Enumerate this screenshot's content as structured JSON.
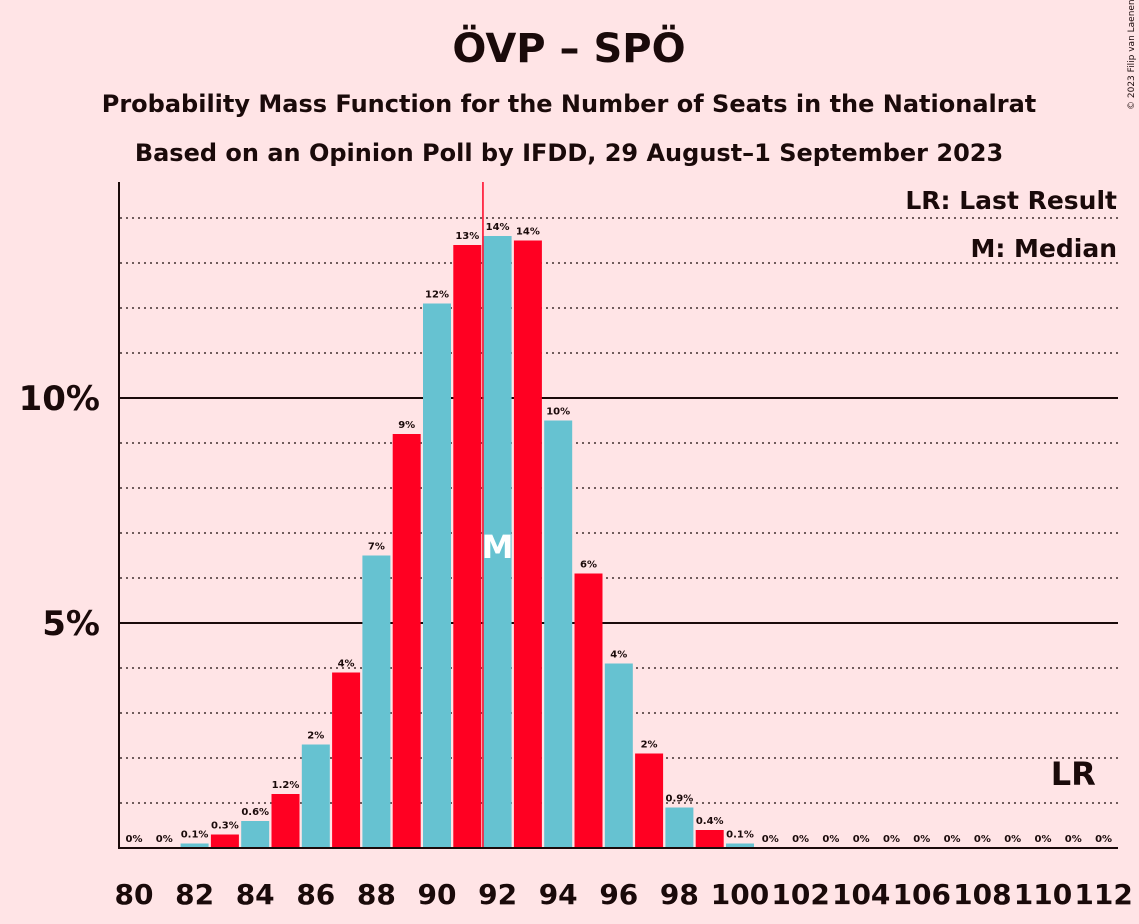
{
  "chart_data": {
    "type": "bar",
    "title": "ÖVP – SPÖ",
    "subtitle": "Probability Mass Function for the Number of Seats in the Nationalrat",
    "subtitle2": "Based on an Opinion Poll by IFDD, 29 August–1 September 2023",
    "copyright": "© 2023 Filip van Laenen",
    "legend": {
      "last_result": "LR: Last Result",
      "median": "M: Median"
    },
    "median_marker": "M",
    "median_seat": 92,
    "last_result_marker": "LR",
    "last_result_seat": 111,
    "x": [
      80,
      81,
      82,
      83,
      84,
      85,
      86,
      87,
      88,
      89,
      90,
      91,
      92,
      93,
      94,
      95,
      96,
      97,
      98,
      99,
      100,
      101,
      102,
      103,
      104,
      105,
      106,
      107,
      108,
      109,
      110,
      111,
      112
    ],
    "values": [
      0,
      0,
      0.1,
      0.3,
      0.6,
      1.2,
      2.3,
      3.9,
      6.5,
      9.2,
      12.1,
      13.4,
      13.6,
      13.5,
      9.5,
      6.1,
      4.1,
      2.1,
      0.9,
      0.4,
      0.1,
      0,
      0,
      0,
      0,
      0,
      0,
      0,
      0,
      0,
      0,
      0,
      0
    ],
    "labels": [
      "0%",
      "0%",
      "0.1%",
      "0.3%",
      "0.6%",
      "1.2%",
      "2%",
      "4%",
      "7%",
      "9%",
      "12%",
      "13%",
      "14%",
      "14%",
      "10%",
      "6%",
      "4%",
      "2%",
      "0.9%",
      "0.4%",
      "0.1%",
      "0%",
      "0%",
      "0%",
      "0%",
      "0%",
      "0%",
      "0%",
      "0%",
      "0%",
      "0%",
      "0%",
      "0%"
    ],
    "x_tick_labels": [
      "80",
      "82",
      "84",
      "86",
      "88",
      "90",
      "92",
      "94",
      "96",
      "98",
      "100",
      "102",
      "104",
      "106",
      "108",
      "110",
      "112"
    ],
    "y_tick_labels": [
      {
        "value": 5,
        "label": "5%"
      },
      {
        "value": 10,
        "label": "10%"
      }
    ],
    "ylim": [
      0,
      14.8
    ],
    "grid": "dotted every 1%, solid at 5% and 10%",
    "colors": {
      "even": "#66c2d1",
      "odd": "#ff0022",
      "background": "#ffe4e6",
      "median_line": "#ff0022",
      "text": "#1a0a0a"
    }
  }
}
